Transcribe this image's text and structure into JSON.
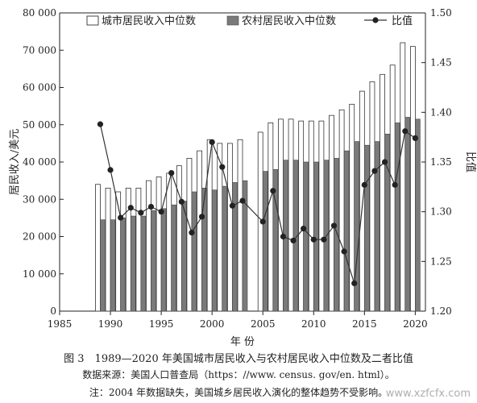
{
  "chart_data": {
    "type": "bar",
    "xlabel": "年 份",
    "ylabel_left": "居民收入/美元",
    "ylabel_right": "比值",
    "x_ticks": [
      1985,
      1990,
      1995,
      2000,
      2005,
      2010,
      2015,
      2020
    ],
    "xlim": [
      1985,
      2021
    ],
    "ylim_left": [
      0,
      80000
    ],
    "y_ticks_left": [
      "0",
      "10 000",
      "20 000",
      "30 000",
      "40 000",
      "50 000",
      "60 000",
      "70 000",
      "80 000"
    ],
    "ylim_right": [
      1.2,
      1.5
    ],
    "y_ticks_right": [
      "1.20",
      "1.25",
      "1.30",
      "1.35",
      "1.40",
      "1.45",
      "1.50"
    ],
    "legend_position": "top",
    "grid": false,
    "x": [
      1989,
      1990,
      1991,
      1992,
      1993,
      1994,
      1995,
      1996,
      1997,
      1998,
      1999,
      2000,
      2001,
      2002,
      2003,
      2005,
      2006,
      2007,
      2008,
      2009,
      2010,
      2011,
      2012,
      2013,
      2014,
      2015,
      2016,
      2017,
      2018,
      2019,
      2020
    ],
    "series": [
      {
        "name": "城市居民收入中位数",
        "kind": "bar",
        "axis": "left",
        "color": "#ffffff",
        "values": [
          34000,
          33000,
          32000,
          33000,
          33000,
          35000,
          36000,
          37000,
          39000,
          41000,
          43000,
          46000,
          45000,
          45000,
          46000,
          48000,
          50500,
          51500,
          51500,
          51000,
          51000,
          51000,
          52500,
          54000,
          55500,
          59000,
          61500,
          63500,
          66000,
          72000,
          71000
        ]
      },
      {
        "name": "农村居民收入中位数",
        "kind": "bar",
        "axis": "left",
        "color": "#7a7a7a",
        "values": [
          24500,
          24500,
          25000,
          25500,
          25500,
          27000,
          27500,
          28500,
          29500,
          32000,
          33000,
          32500,
          33500,
          34500,
          35000,
          37500,
          38000,
          40500,
          40500,
          40000,
          40000,
          40500,
          41000,
          43000,
          45500,
          44500,
          45500,
          47500,
          50500,
          52000,
          51500
        ]
      },
      {
        "name": "比值",
        "kind": "line",
        "axis": "right",
        "color": "#333333",
        "values": [
          1.388,
          1.342,
          1.294,
          1.304,
          1.299,
          1.305,
          1.3,
          1.339,
          1.31,
          1.279,
          1.295,
          1.37,
          1.345,
          1.306,
          1.311,
          1.29,
          1.321,
          1.275,
          1.271,
          1.283,
          1.272,
          1.272,
          1.286,
          1.26,
          1.228,
          1.327,
          1.341,
          1.35,
          1.327,
          1.381,
          1.374
        ]
      }
    ]
  },
  "caption": {
    "title": "图 3　1989—2020 年美国城市居民收入与农村居民收入中位数及二者比值",
    "source": "数据来源：美国人口普查局（https：//www. census. gov/en. html）。",
    "note": "注：2004 年数据缺失，美国城乡居民收入演化的整体趋势不受影响。"
  },
  "watermark": "www.xzfcfx.com"
}
